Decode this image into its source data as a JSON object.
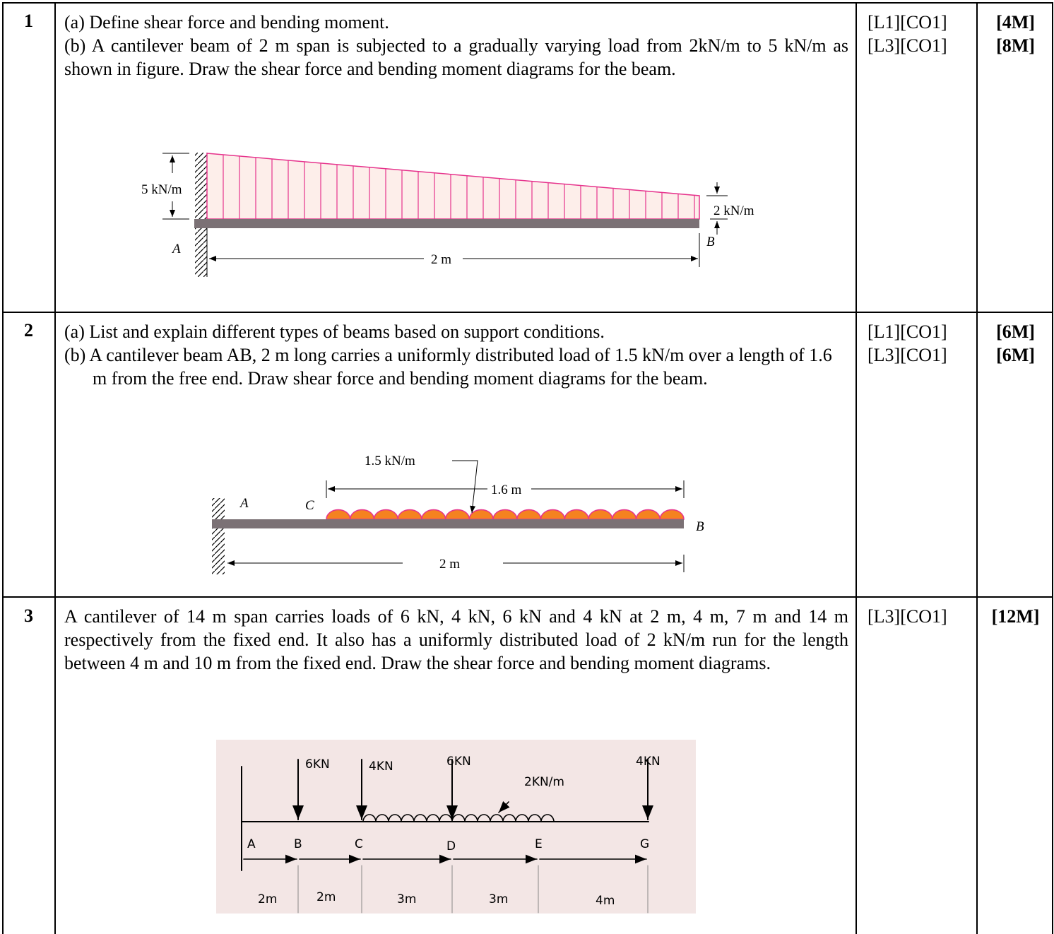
{
  "rows": [
    {
      "number": "1",
      "parts": [
        "(a) Define shear force and bending moment.",
        "(b) A cantilever beam of 2 m span is subjected to a gradually varying load from 2kN/m to 5 kN/m as shown in figure. Draw the shear force and bending moment diagrams for the beam."
      ],
      "levels": [
        "[L1][CO1]",
        "[L3][CO1]"
      ],
      "marks": [
        "[4M]",
        "[8M]"
      ],
      "figure": {
        "left_load": "5 kN/m",
        "right_load": "2 kN/m",
        "point_a": "A",
        "point_b": "B",
        "span": "2 m"
      }
    },
    {
      "number": "2",
      "parts": [
        "(a) List and explain different types of beams based on support conditions.",
        "(b) A cantilever beam AB, 2 m long carries a uniformly distributed load of 1.5 kN/m over a length of 1.6 m from the free end. Draw shear force and bending moment diagrams for the beam."
      ],
      "levels": [
        "[L1][CO1]",
        "[L3][CO1]"
      ],
      "marks": [
        "[6M]",
        "[6M]"
      ],
      "figure": {
        "load": "1.5 kN/m",
        "load_length": "1.6 m",
        "point_a": "A",
        "point_c": "C",
        "point_b": "B",
        "span": "2 m"
      }
    },
    {
      "number": "3",
      "parts": [
        "A cantilever of 14 m span carries loads of 6 kN, 4 kN, 6 kN and 4 kN at 2 m, 4 m, 7 m and 14 m respectively from the fixed end. It also has a uniformly distributed load of 2 kN/m run for the length between 4 m and 10 m from the fixed end. Draw the shear force and bending moment diagrams."
      ],
      "levels": [
        "[L3][CO1]"
      ],
      "marks": [
        "[12M]"
      ],
      "figure": {
        "loads": [
          "6KN",
          "4KN",
          "6KN",
          "4KN"
        ],
        "udl": "2KN/m",
        "points": [
          "A",
          "B",
          "C",
          "D",
          "E",
          "G"
        ],
        "spacings": [
          "2m",
          "2m",
          "3m",
          "3m",
          "4m"
        ]
      }
    }
  ]
}
